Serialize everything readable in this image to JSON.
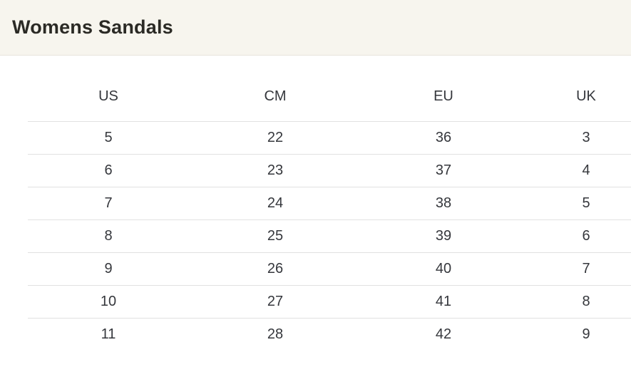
{
  "page": {
    "title": "Womens Sandals"
  },
  "table": {
    "columns": [
      "US",
      "CM",
      "EU",
      "UK"
    ],
    "rows": [
      [
        "5",
        "22",
        "36",
        "3"
      ],
      [
        "6",
        "23",
        "37",
        "4"
      ],
      [
        "7",
        "24",
        "38",
        "5"
      ],
      [
        "8",
        "25",
        "39",
        "6"
      ],
      [
        "9",
        "26",
        "40",
        "7"
      ],
      [
        "10",
        "27",
        "41",
        "8"
      ],
      [
        "11",
        "28",
        "42",
        "9"
      ]
    ]
  },
  "chart_data": {
    "type": "table",
    "title": "Womens Sandals",
    "columns": [
      "US",
      "CM",
      "EU",
      "UK"
    ],
    "rows": [
      [
        5,
        22,
        36,
        3
      ],
      [
        6,
        23,
        37,
        4
      ],
      [
        7,
        24,
        38,
        5
      ],
      [
        8,
        25,
        39,
        6
      ],
      [
        9,
        26,
        40,
        7
      ],
      [
        10,
        27,
        41,
        8
      ],
      [
        11,
        28,
        42,
        9
      ]
    ]
  },
  "colors": {
    "page_background": "#ffffff",
    "banner_background": "#f7f5ee",
    "banner_border": "#e7e4dc",
    "title_text": "#2b2a25",
    "table_text": "#35373c",
    "row_divider": "#e1e1e1"
  }
}
